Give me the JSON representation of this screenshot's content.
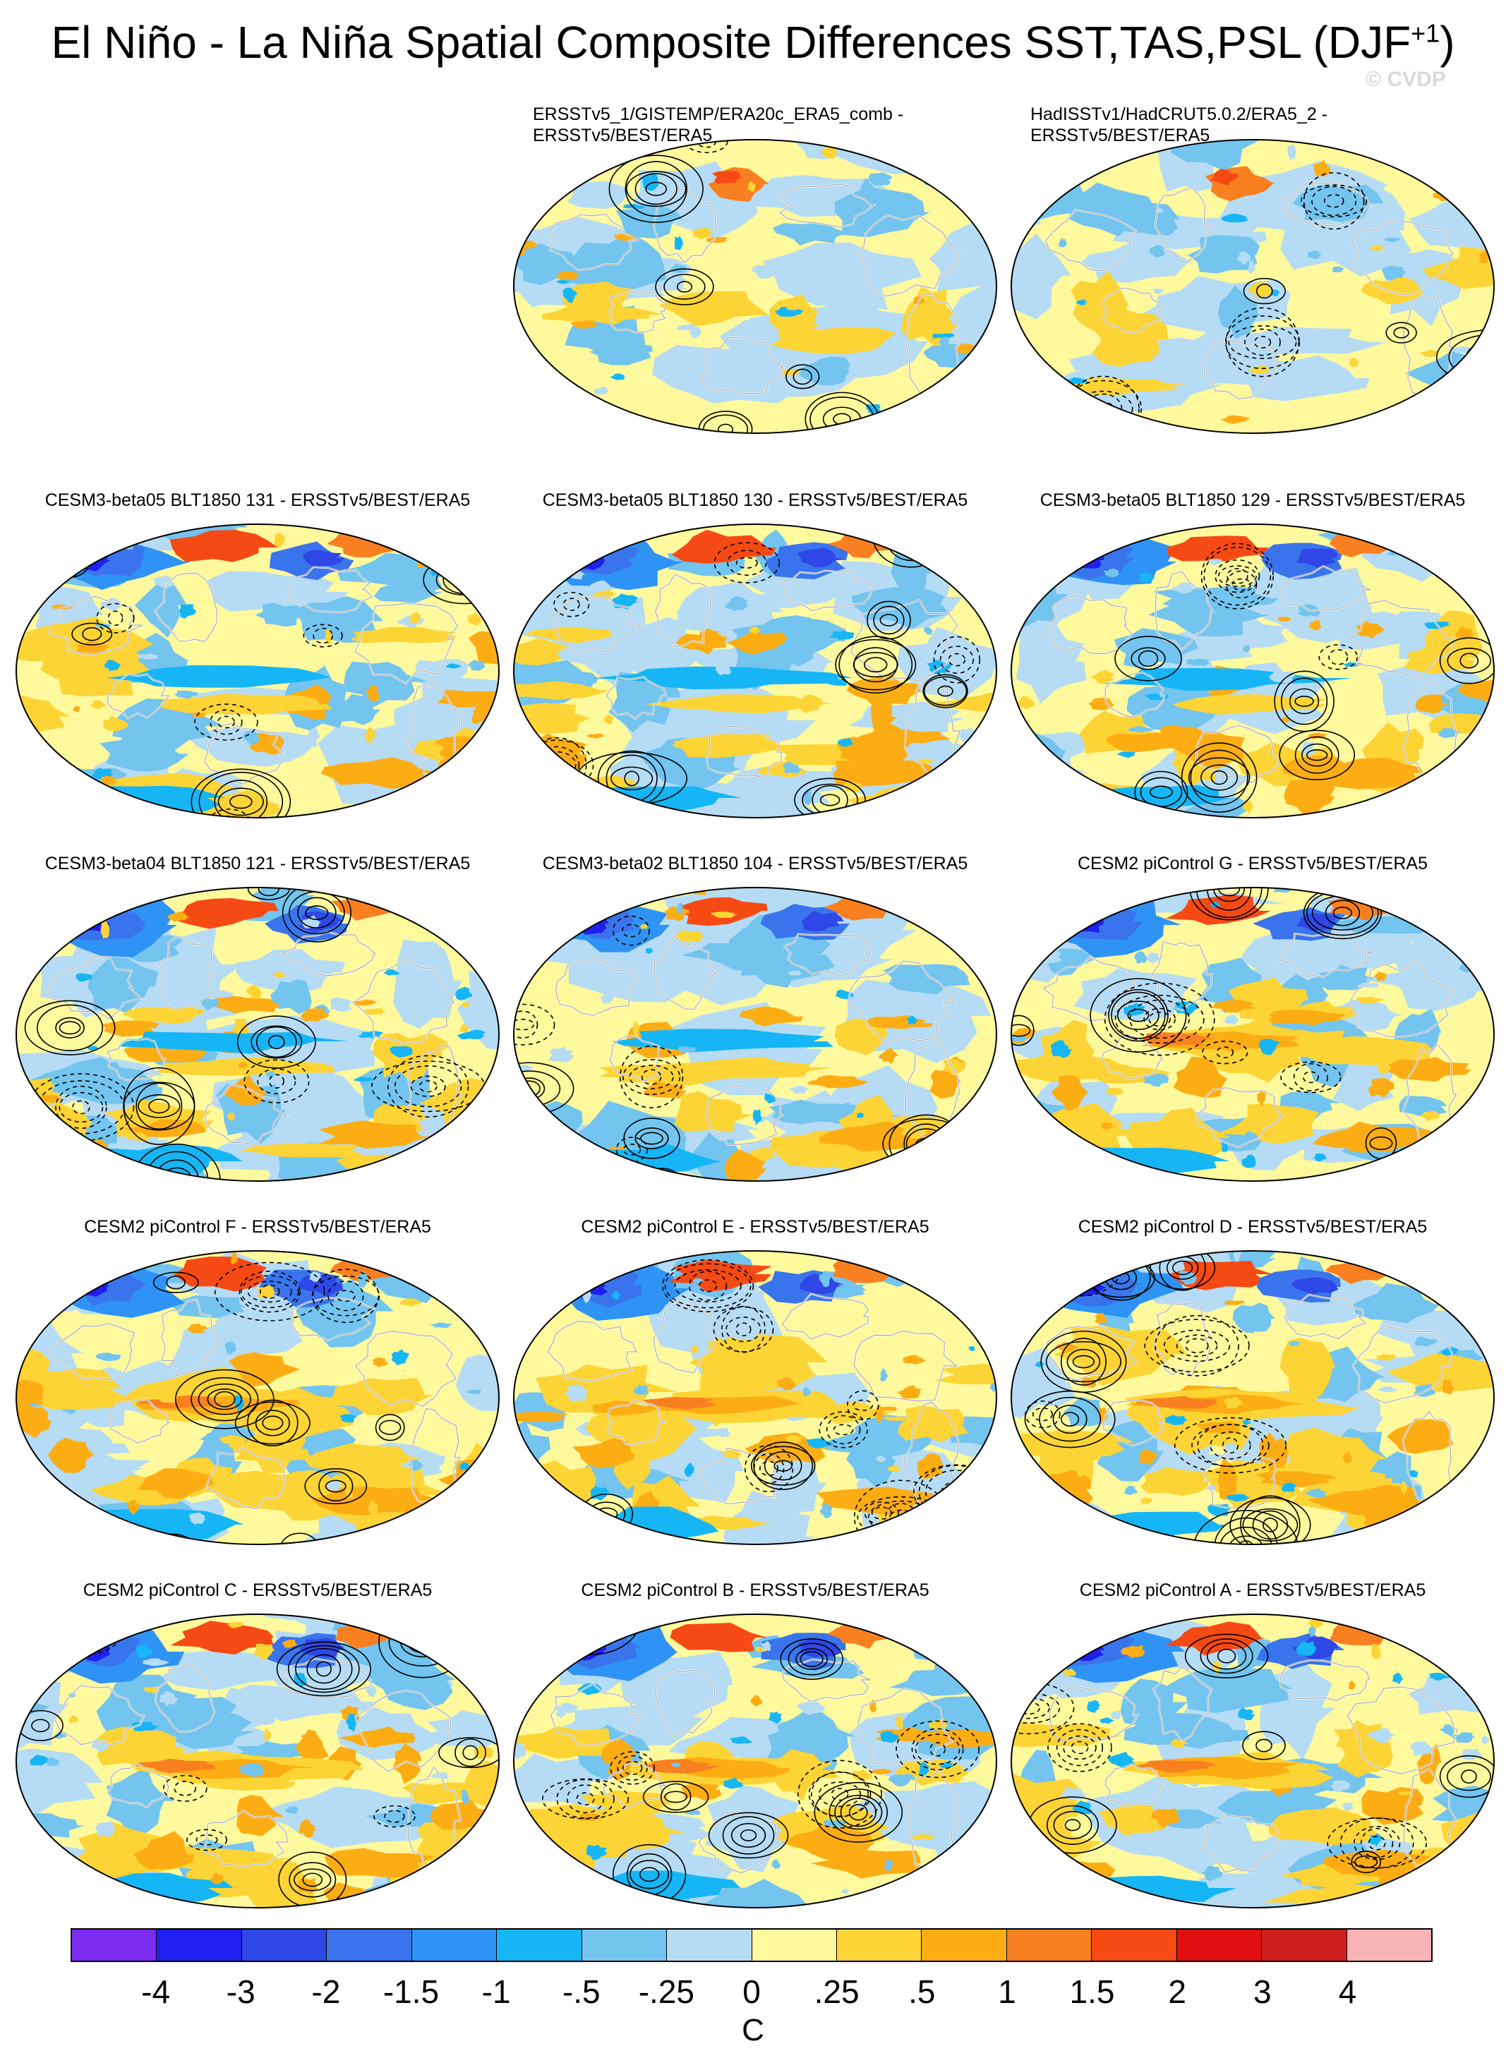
{
  "title": {
    "main": "El Niño - La Niña Spatial Composite Differences SST,TAS,PSL (DJF",
    "sup": "+1",
    "close": ")"
  },
  "watermark": "© CVDP",
  "panels": [
    {
      "title": "ERSSTv5_1/GISTEMP/ERA20c_ERA5_comb -\nERSSTv5/BEST/ERA5",
      "style": "obs"
    },
    {
      "title": "HadISSTv1/HadCRUT5.0.2/ERA5_2 -\nERSSTv5/BEST/ERA5",
      "style": "obs"
    },
    {
      "title": "CESM3-beta05 BLT1850 131 - ERSSTv5/BEST/ERA5",
      "style": "model"
    },
    {
      "title": "CESM3-beta05 BLT1850 130 - ERSSTv5/BEST/ERA5",
      "style": "model"
    },
    {
      "title": "CESM3-beta05 BLT1850 129 - ERSSTv5/BEST/ERA5",
      "style": "model"
    },
    {
      "title": "CESM3-beta04 BLT1850 121 - ERSSTv5/BEST/ERA5",
      "style": "model"
    },
    {
      "title": "CESM3-beta02 BLT1850 104 - ERSSTv5/BEST/ERA5",
      "style": "model"
    },
    {
      "title": "CESM2 piControl G - ERSSTv5/BEST/ERA5",
      "style": "warm"
    },
    {
      "title": "CESM2 piControl F - ERSSTv5/BEST/ERA5",
      "style": "warm"
    },
    {
      "title": "CESM2 piControl E - ERSSTv5/BEST/ERA5",
      "style": "warm"
    },
    {
      "title": "CESM2 piControl D - ERSSTv5/BEST/ERA5",
      "style": "warm"
    },
    {
      "title": "CESM2 piControl C - ERSSTv5/BEST/ERA5",
      "style": "warm"
    },
    {
      "title": "CESM2 piControl B - ERSSTv5/BEST/ERA5",
      "style": "warm"
    },
    {
      "title": "CESM2 piControl A - ERSSTv5/BEST/ERA5",
      "style": "warm"
    }
  ],
  "colorbar": {
    "colors": [
      "#7b2cf0",
      "#1f1ff0",
      "#2e47e6",
      "#3a74ec",
      "#2f93f5",
      "#16b6f6",
      "#73c4ef",
      "#b5dcf4",
      "#fff99e",
      "#fdd435",
      "#fcad14",
      "#f98021",
      "#f64a14",
      "#e01010",
      "#cc1f20",
      "#f9b2b5"
    ],
    "labels": [
      "-4",
      "-3",
      "-2",
      "-1.5",
      "-1",
      "-.5",
      "-.25",
      "0",
      ".25",
      ".5",
      "1",
      "1.5",
      "2",
      "3",
      "4"
    ],
    "units": "C"
  }
}
